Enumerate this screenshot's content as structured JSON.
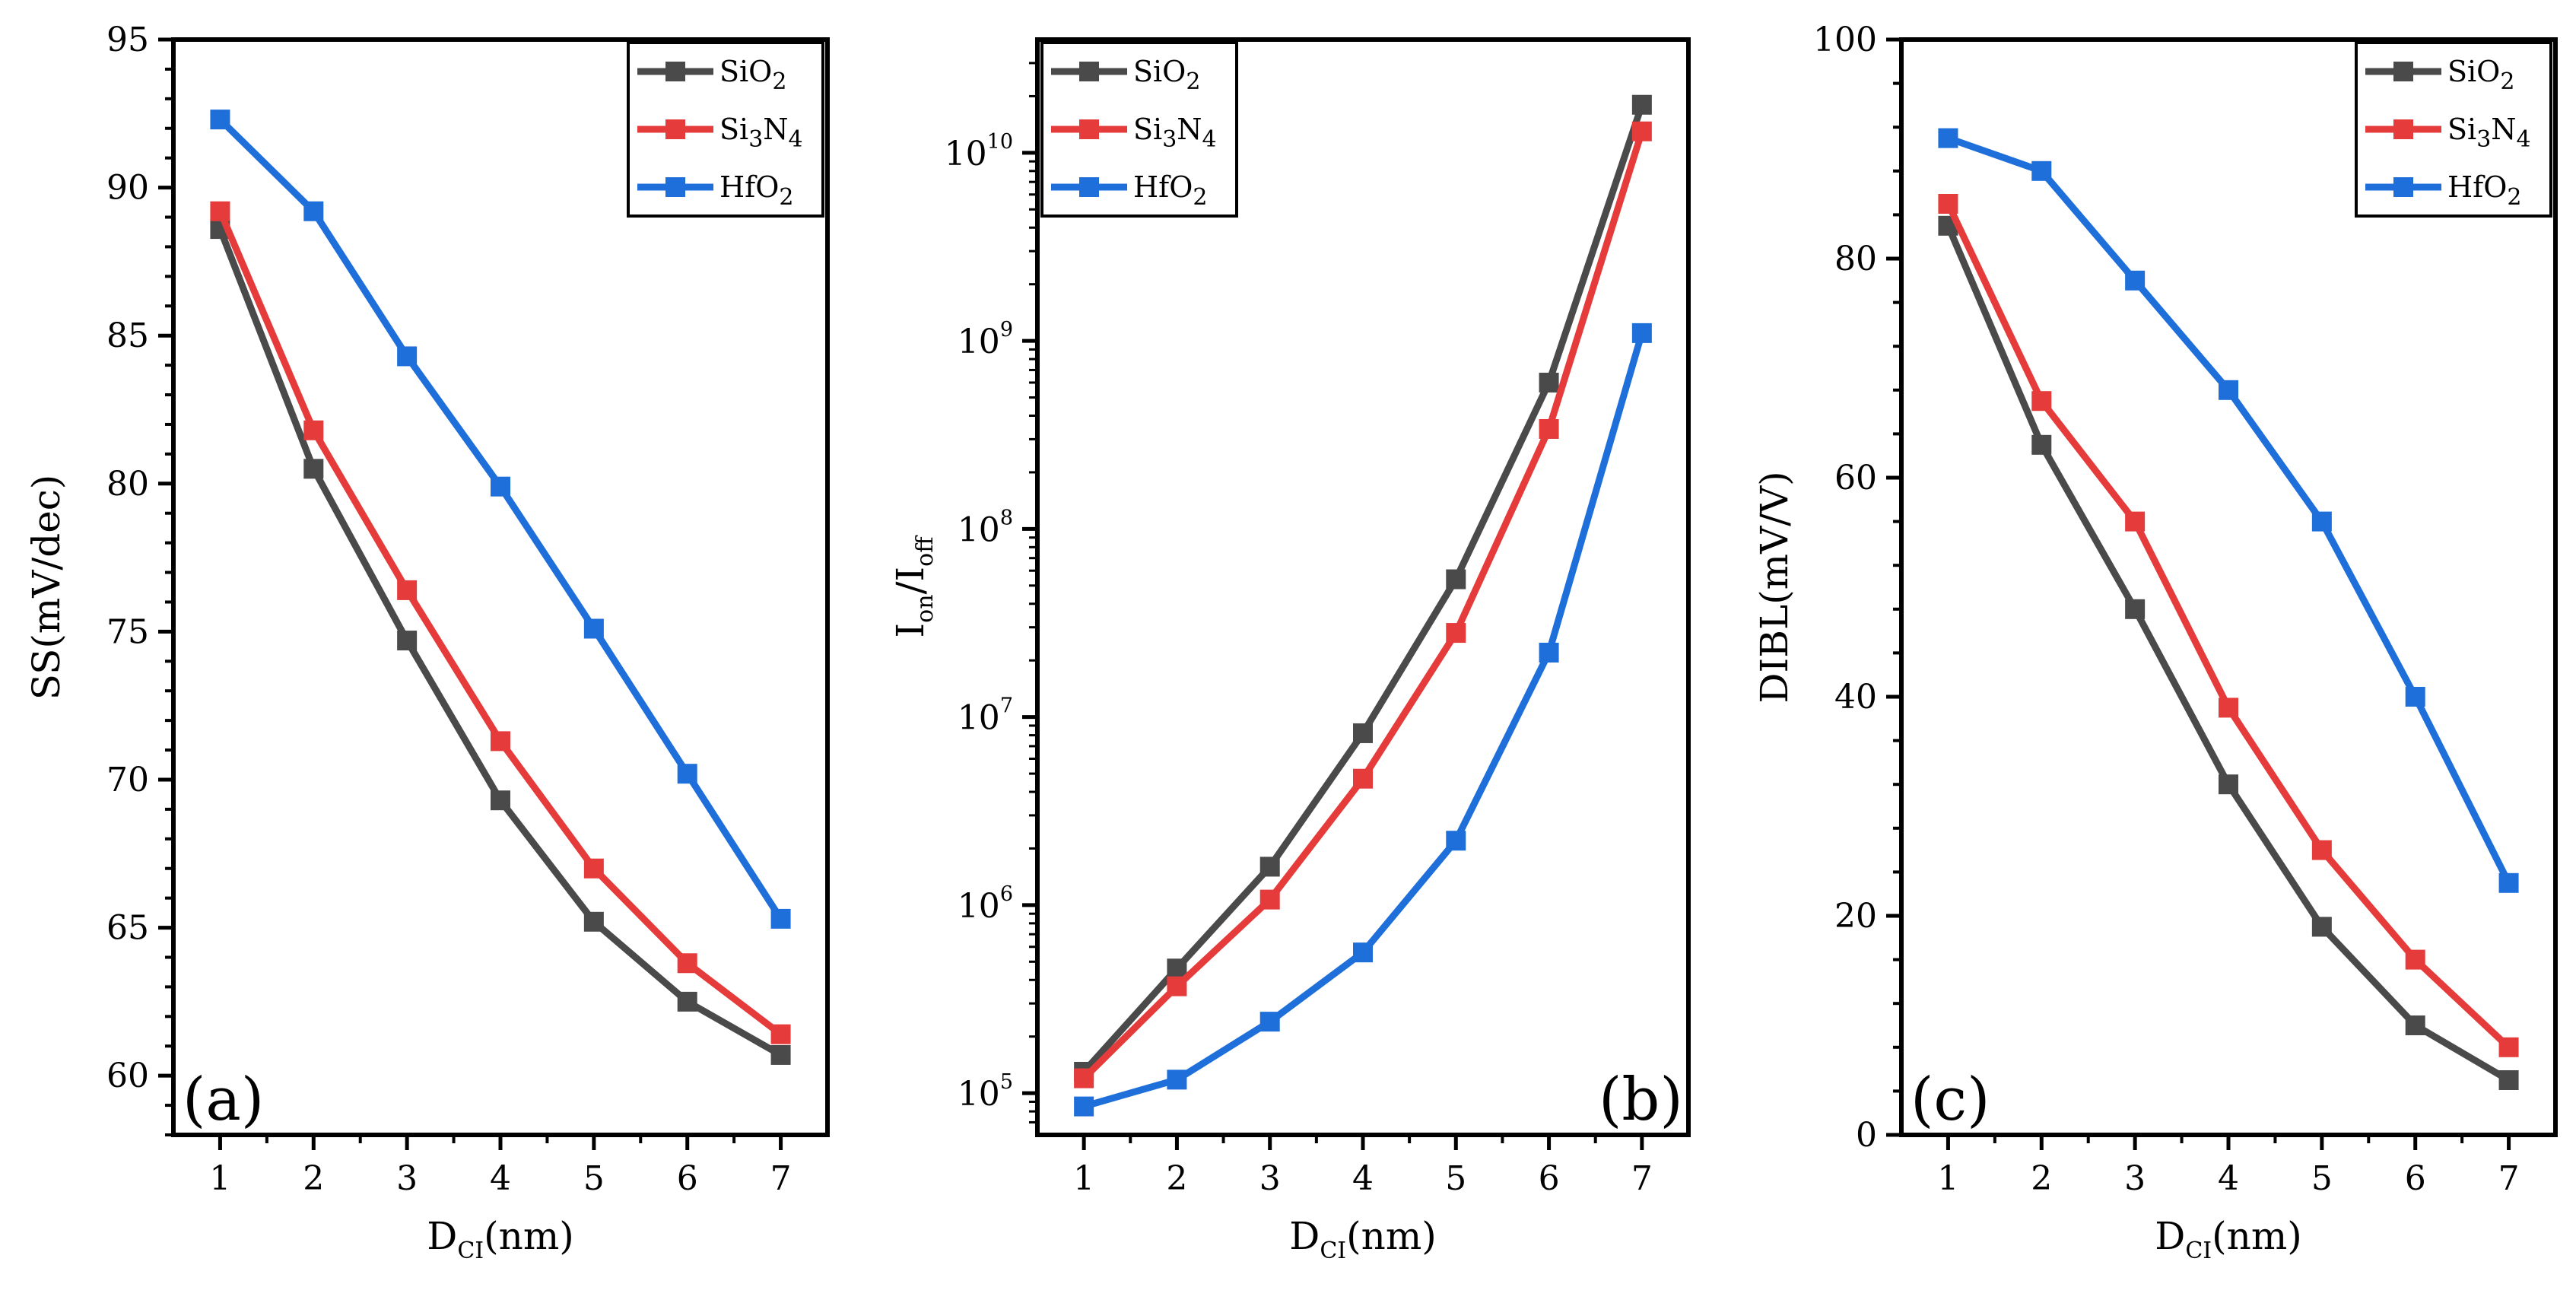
{
  "colors": {
    "SiO2": "#4a4a4a",
    "Si3N4": "#e63b3b",
    "HfO2": "#1f6fdb",
    "axis": "#000000",
    "background": "#ffffff"
  },
  "chart_data": [
    {
      "id": "a",
      "type": "line",
      "panel_label": "(a)",
      "xlabel": "D_CI(nm)",
      "xlabel_main": "D",
      "xlabel_sub": "CI",
      "xlabel_tail": "(nm)",
      "ylabel": "SS(mV/dec)",
      "yscale": "linear",
      "ylim": [
        58,
        95
      ],
      "xlim": [
        0.5,
        7.5
      ],
      "x": [
        1,
        2,
        3,
        4,
        5,
        6,
        7
      ],
      "xticks": [
        1,
        2,
        3,
        4,
        5,
        6,
        7
      ],
      "xtick_labels": [
        "1",
        "2",
        "3",
        "4",
        "5",
        "6",
        "7"
      ],
      "yticks": [
        60,
        65,
        70,
        75,
        80,
        85,
        90,
        95
      ],
      "ytick_labels": [
        "60",
        "65",
        "70",
        "75",
        "80",
        "85",
        "90",
        "95"
      ],
      "legend_position": "top-right",
      "series": [
        {
          "key": "SiO2",
          "name": "SiO2",
          "legend_main": "SiO",
          "legend_sub": "2",
          "legend_tail": "",
          "values": [
            88.6,
            80.5,
            74.7,
            69.3,
            65.2,
            62.5,
            60.7
          ]
        },
        {
          "key": "Si3N4",
          "name": "Si3N4",
          "legend_main": "Si",
          "legend_sub": "3",
          "legend_tail": "N",
          "legend_sub2": "4",
          "values": [
            89.2,
            81.8,
            76.4,
            71.3,
            67.0,
            63.8,
            61.4
          ]
        },
        {
          "key": "HfO2",
          "name": "HfO2",
          "legend_main": "HfO",
          "legend_sub": "2",
          "legend_tail": "",
          "values": [
            92.3,
            89.2,
            84.3,
            79.9,
            75.1,
            70.2,
            65.3
          ]
        }
      ]
    },
    {
      "id": "b",
      "type": "line",
      "panel_label": "(b)",
      "xlabel": "D_CI(nm)",
      "xlabel_main": "D",
      "xlabel_sub": "CI",
      "xlabel_tail": "(nm)",
      "ylabel": "I_on/I_off",
      "ylabel_main1": "I",
      "ylabel_sub1": "on",
      "ylabel_mid": "/I",
      "ylabel_sub2": "off",
      "yscale": "log",
      "ylim": [
        60000,
        40000000000
      ],
      "xlim": [
        0.5,
        7.5
      ],
      "x": [
        1,
        2,
        3,
        4,
        5,
        6,
        7
      ],
      "xticks": [
        1,
        2,
        3,
        4,
        5,
        6,
        7
      ],
      "xtick_labels": [
        "1",
        "2",
        "3",
        "4",
        "5",
        "6",
        "7"
      ],
      "yticks": [
        100000,
        1000000,
        10000000,
        100000000,
        1000000000,
        10000000000
      ],
      "ytick_bases": [
        "10",
        "10",
        "10",
        "10",
        "10",
        "10"
      ],
      "ytick_exps": [
        "5",
        "6",
        "7",
        "8",
        "9",
        "10"
      ],
      "legend_position": "top-left",
      "series": [
        {
          "key": "SiO2",
          "name": "SiO2",
          "legend_main": "SiO",
          "legend_sub": "2",
          "legend_tail": "",
          "values": [
            130000,
            460000,
            1600000,
            8200000,
            54000000,
            600000000,
            18000000000
          ]
        },
        {
          "key": "Si3N4",
          "name": "Si3N4",
          "legend_main": "Si",
          "legend_sub": "3",
          "legend_tail": "N",
          "legend_sub2": "4",
          "values": [
            120000,
            370000,
            1070000,
            4700000,
            28000000,
            340000000,
            13000000000
          ]
        },
        {
          "key": "HfO2",
          "name": "HfO2",
          "legend_main": "HfO",
          "legend_sub": "2",
          "legend_tail": "",
          "values": [
            85000,
            118000,
            240000,
            560000,
            2200000,
            22000000,
            1100000000
          ]
        }
      ]
    },
    {
      "id": "c",
      "type": "line",
      "panel_label": "(c)",
      "xlabel": "D_CI(nm)",
      "xlabel_main": "D",
      "xlabel_sub": "CI",
      "xlabel_tail": "(nm)",
      "ylabel": "DIBL(mV/V)",
      "yscale": "linear",
      "ylim": [
        0,
        100
      ],
      "xlim": [
        0.5,
        7.5
      ],
      "x": [
        1,
        2,
        3,
        4,
        5,
        6,
        7
      ],
      "xticks": [
        1,
        2,
        3,
        4,
        5,
        6,
        7
      ],
      "xtick_labels": [
        "1",
        "2",
        "3",
        "4",
        "5",
        "6",
        "7"
      ],
      "yticks": [
        0,
        20,
        40,
        60,
        80,
        100
      ],
      "ytick_labels": [
        "0",
        "20",
        "40",
        "60",
        "80",
        "100"
      ],
      "legend_position": "top-right",
      "series": [
        {
          "key": "SiO2",
          "name": "SiO2",
          "legend_main": "SiO",
          "legend_sub": "2",
          "legend_tail": "",
          "values": [
            83,
            63,
            48,
            32,
            19,
            10,
            5
          ]
        },
        {
          "key": "Si3N4",
          "name": "Si3N4",
          "legend_main": "Si",
          "legend_sub": "3",
          "legend_tail": "N",
          "legend_sub2": "4",
          "values": [
            85,
            67,
            56,
            39,
            26,
            16,
            8
          ]
        },
        {
          "key": "HfO2",
          "name": "HfO2",
          "legend_main": "HfO",
          "legend_sub": "2",
          "legend_tail": "",
          "values": [
            91,
            88,
            78,
            68,
            56,
            40,
            23
          ]
        }
      ]
    }
  ]
}
